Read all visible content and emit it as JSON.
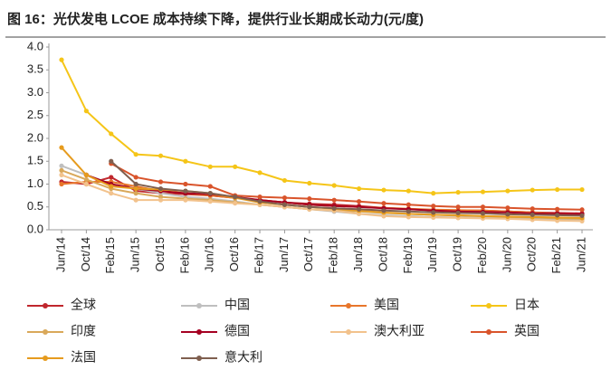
{
  "chart_data": {
    "type": "line",
    "title": "图 16：光伏发电 LCOE 成本持续下降，提供行业长期成长动力(元/度)",
    "categories": [
      "Jun/14",
      "Oct/14",
      "Feb/15",
      "Jun/15",
      "Oct/15",
      "Feb/16",
      "Jun/16",
      "Oct/16",
      "Feb/17",
      "Jun/17",
      "Oct/17",
      "Feb/18",
      "Jun/18",
      "Oct/18",
      "Feb/19",
      "Jun/19",
      "Oct/19",
      "Feb/20",
      "Jun/20",
      "Oct/20",
      "Feb/21",
      "Jun/21"
    ],
    "series": [
      {
        "name": "全球",
        "color": "#c0272d",
        "values": [
          1.05,
          1.0,
          1.15,
          0.85,
          0.8,
          0.78,
          0.75,
          0.7,
          0.65,
          0.6,
          0.57,
          0.55,
          0.52,
          0.48,
          0.45,
          0.43,
          0.42,
          0.42,
          0.4,
          0.38,
          0.37,
          0.36
        ]
      },
      {
        "name": "中国",
        "color": "#bfbfbf",
        "values": [
          1.4,
          1.2,
          1.0,
          0.9,
          0.8,
          0.72,
          0.68,
          0.62,
          0.55,
          0.5,
          0.45,
          0.4,
          0.35,
          0.32,
          0.3,
          0.28,
          0.27,
          0.26,
          0.25,
          0.24,
          0.23,
          0.22
        ]
      },
      {
        "name": "美国",
        "color": "#e8762b",
        "values": [
          1.0,
          1.05,
          1.05,
          0.95,
          0.85,
          0.8,
          0.75,
          0.7,
          0.65,
          0.6,
          0.55,
          0.52,
          0.5,
          0.48,
          0.46,
          0.44,
          0.43,
          0.42,
          0.4,
          0.38,
          0.35,
          0.33
        ]
      },
      {
        "name": "日本",
        "color": "#f5c518",
        "values": [
          3.72,
          2.6,
          2.1,
          1.65,
          1.62,
          1.5,
          1.38,
          1.38,
          1.25,
          1.08,
          1.02,
          0.97,
          0.9,
          0.87,
          0.85,
          0.8,
          0.82,
          0.83,
          0.85,
          0.87,
          0.88,
          0.88
        ]
      },
      {
        "name": "印度",
        "color": "#d9a85a",
        "values": [
          1.3,
          1.1,
          0.9,
          0.8,
          0.72,
          0.68,
          0.65,
          0.6,
          0.55,
          0.5,
          0.45,
          0.42,
          0.4,
          0.37,
          0.35,
          0.33,
          0.31,
          0.3,
          0.28,
          0.27,
          0.25,
          0.24
        ]
      },
      {
        "name": "德国",
        "color": "#a50021",
        "values": [
          null,
          1.2,
          1.0,
          0.9,
          0.85,
          0.8,
          0.78,
          0.72,
          0.65,
          0.6,
          0.55,
          0.52,
          0.5,
          0.47,
          0.45,
          0.42,
          0.4,
          0.39,
          0.38,
          0.36,
          0.35,
          0.34
        ]
      },
      {
        "name": "澳大利亚",
        "color": "#f2c28c",
        "values": [
          1.2,
          1.0,
          0.8,
          0.65,
          0.65,
          0.65,
          0.62,
          0.58,
          0.55,
          0.5,
          0.45,
          0.42,
          0.35,
          0.3,
          0.28,
          0.27,
          0.26,
          0.25,
          0.24,
          0.22,
          0.2,
          0.19
        ]
      },
      {
        "name": "英国",
        "color": "#d9542b",
        "values": [
          null,
          null,
          1.45,
          1.15,
          1.05,
          1.0,
          0.95,
          0.75,
          0.72,
          0.7,
          0.68,
          0.65,
          0.62,
          0.58,
          0.55,
          0.52,
          0.5,
          0.5,
          0.48,
          0.46,
          0.45,
          0.44
        ]
      },
      {
        "name": "法国",
        "color": "#e69b1e",
        "values": [
          1.8,
          1.2,
          0.95,
          0.9,
          0.88,
          0.85,
          0.8,
          0.7,
          0.6,
          0.55,
          0.5,
          0.46,
          0.42,
          0.38,
          0.35,
          0.33,
          0.32,
          0.3,
          0.29,
          0.28,
          0.27,
          0.26
        ]
      },
      {
        "name": "意大利",
        "color": "#7f5f4f",
        "values": [
          null,
          null,
          1.5,
          1.0,
          0.9,
          0.85,
          0.8,
          0.72,
          0.62,
          0.55,
          0.5,
          0.47,
          0.45,
          0.42,
          0.4,
          0.38,
          0.37,
          0.36,
          0.34,
          0.33,
          0.32,
          0.31
        ]
      }
    ],
    "ylim": [
      0,
      4
    ],
    "yticks": [
      {
        "value": 0,
        "label": "0.0"
      },
      0.5,
      {
        "value": 1,
        "label": "1.0"
      },
      1.5,
      {
        "value": 2,
        "label": "2.0"
      },
      2.5,
      {
        "value": 3,
        "label": "3.0"
      },
      3.5,
      {
        "value": 4,
        "label": "4.0"
      }
    ],
    "grid": false
  }
}
